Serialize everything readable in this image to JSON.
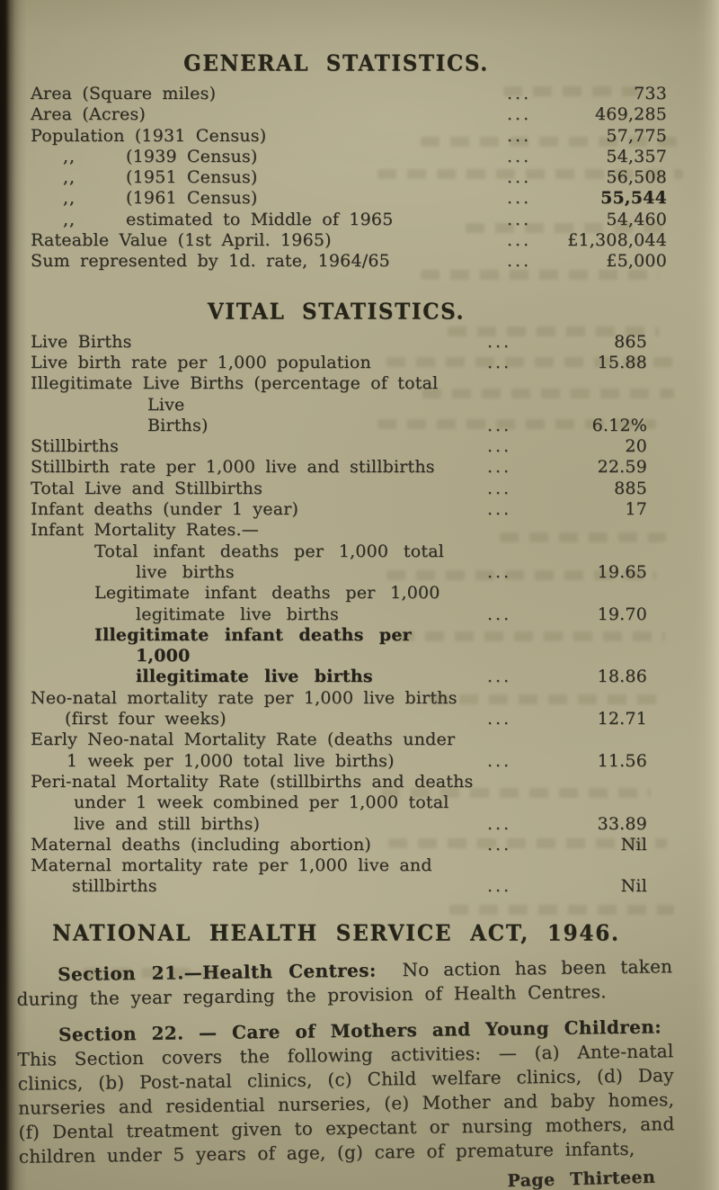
{
  "page": {
    "number_label": "Page Thirteen",
    "leader_dots": "...",
    "paper_color": "#b1aa8c",
    "ink_color": "#2d2b23"
  },
  "general": {
    "title": "GENERAL STATISTICS.",
    "rows": [
      {
        "label": "Area (Square miles)",
        "value": "733"
      },
      {
        "label": "Area (Acres)",
        "value": "469,285"
      },
      {
        "label": "Population (1931 Census)",
        "value": "57,775"
      },
      {
        "prefix": ",,",
        "label": "(1939 Census)",
        "value": "54,357"
      },
      {
        "prefix": ",,",
        "label": "(1951 Census)",
        "value": "56,508"
      },
      {
        "prefix": ",,",
        "label": "(1961 Census)",
        "value": "55,544",
        "emph_value": true
      },
      {
        "prefix": ",,",
        "label": "estimated to Middle of 1965",
        "value": "54,460"
      },
      {
        "label": "Rateable Value (1st April. 1965)",
        "value": "£1,308,044"
      },
      {
        "label": "Sum represented by 1d. rate, 1964/65",
        "value": "£5,000"
      }
    ]
  },
  "vital": {
    "title": "VITAL STATISTICS.",
    "rows": [
      {
        "label": "Live Births",
        "value": "865"
      },
      {
        "label": "Live birth rate per 1,000 population",
        "value": "15.88"
      },
      {
        "label": "Illegitimate Live Births (percentage of total Live\nBirths)",
        "value": "6.12%",
        "hang": 130
      },
      {
        "label": "Stillbirths",
        "value": "20"
      },
      {
        "label": "Stillbirth rate per 1,000 live and stillbirths",
        "value": "22.59"
      },
      {
        "label": "Total Live and Stillbirths",
        "value": "885"
      },
      {
        "label": "Infant deaths (under 1 year)",
        "value": "17"
      },
      {
        "label": "Infant Mortality Rates.—",
        "value": ""
      },
      {
        "label": "Total infant deaths per 1,000 total\nlive births",
        "value": "19.65",
        "indent": 1,
        "hang": 46
      },
      {
        "label": "Legitimate infant deaths per 1,000\nlegitimate live births",
        "value": "19.70",
        "indent": 1,
        "hang": 46
      },
      {
        "label": "Illegitimate infant deaths per 1,000\nillegitimate live births",
        "value": "18.86",
        "indent": 1,
        "hang": 46,
        "emph": true
      },
      {
        "label": "Neo-natal mortality rate per 1,000 live births\n(first four weeks)",
        "value": "12.71",
        "hang": 38
      },
      {
        "label": "Early Neo-natal Mortality Rate (deaths under\n1 week per 1,000 total live births)",
        "value": "11.56",
        "hang": 40
      },
      {
        "label": "Peri-natal Mortality Rate (stillbirths and deaths\nunder 1 week combined per 1,000 total\nlive and still births)",
        "value": "33.89",
        "hang": 48
      },
      {
        "label": "Maternal deaths (including abortion)",
        "value": "Nil"
      },
      {
        "label": "Maternal mortality rate per 1,000 live and\nstillbirths",
        "value": "Nil",
        "hang": 46
      }
    ]
  },
  "nhs": {
    "title": "NATIONAL HEALTH SERVICE ACT, 1946.",
    "sections": [
      {
        "lead": "Section 21.—Health Centres:",
        "body": " No action has been taken during the year regarding the provision of Health Centres."
      },
      {
        "lead": "Section 22. — Care of Mothers and Young Children:",
        "body": " This Section covers the following activities: — (a) Ante-natal clinics, (b) Post-natal clinics, (c) Child welfare clinics, (d) Day nurseries and residential nurseries, (e) Mother and baby homes, (f) Dental treatment given to expectant or nursing mothers, and children under 5 years of age, (g) care of premature infants,"
      }
    ]
  }
}
